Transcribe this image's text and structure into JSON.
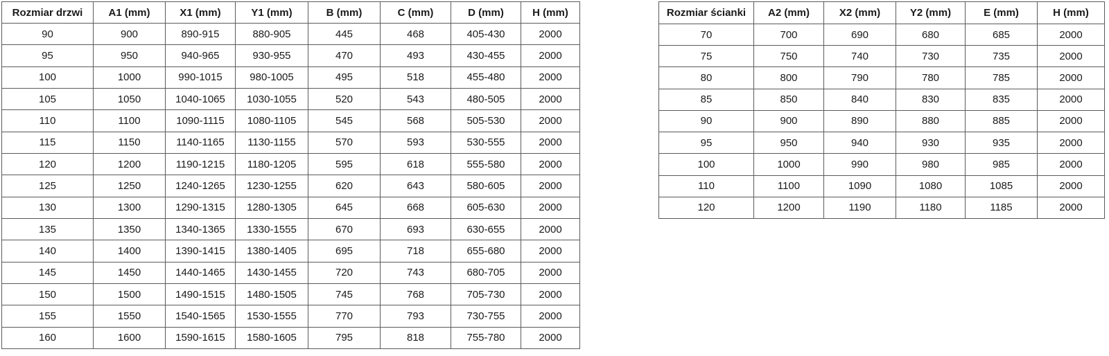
{
  "left_table": {
    "name": "door-size-table",
    "headers": [
      "Rozmiar drzwi",
      "A1 (mm)",
      "X1 (mm)",
      "Y1 (mm)",
      "B (mm)",
      "C (mm)",
      "D (mm)",
      "H (mm)"
    ],
    "rows": [
      [
        "90",
        "900",
        "890-915",
        "880-905",
        "445",
        "468",
        "405-430",
        "2000"
      ],
      [
        "95",
        "950",
        "940-965",
        "930-955",
        "470",
        "493",
        "430-455",
        "2000"
      ],
      [
        "100",
        "1000",
        "990-1015",
        "980-1005",
        "495",
        "518",
        "455-480",
        "2000"
      ],
      [
        "105",
        "1050",
        "1040-1065",
        "1030-1055",
        "520",
        "543",
        "480-505",
        "2000"
      ],
      [
        "110",
        "1100",
        "1090-1115",
        "1080-1105",
        "545",
        "568",
        "505-530",
        "2000"
      ],
      [
        "115",
        "1150",
        "1140-1165",
        "1130-1155",
        "570",
        "593",
        "530-555",
        "2000"
      ],
      [
        "120",
        "1200",
        "1190-1215",
        "1180-1205",
        "595",
        "618",
        "555-580",
        "2000"
      ],
      [
        "125",
        "1250",
        "1240-1265",
        "1230-1255",
        "620",
        "643",
        "580-605",
        "2000"
      ],
      [
        "130",
        "1300",
        "1290-1315",
        "1280-1305",
        "645",
        "668",
        "605-630",
        "2000"
      ],
      [
        "135",
        "1350",
        "1340-1365",
        "1330-1555",
        "670",
        "693",
        "630-655",
        "2000"
      ],
      [
        "140",
        "1400",
        "1390-1415",
        "1380-1405",
        "695",
        "718",
        "655-680",
        "2000"
      ],
      [
        "145",
        "1450",
        "1440-1465",
        "1430-1455",
        "720",
        "743",
        "680-705",
        "2000"
      ],
      [
        "150",
        "1500",
        "1490-1515",
        "1480-1505",
        "745",
        "768",
        "705-730",
        "2000"
      ],
      [
        "155",
        "1550",
        "1540-1565",
        "1530-1555",
        "770",
        "793",
        "730-755",
        "2000"
      ],
      [
        "160",
        "1600",
        "1590-1615",
        "1580-1605",
        "795",
        "818",
        "755-780",
        "2000"
      ]
    ]
  },
  "right_table": {
    "name": "wall-panel-size-table",
    "headers": [
      "Rozmiar ścianki",
      "A2 (mm)",
      "X2 (mm)",
      "Y2 (mm)",
      "E (mm)",
      "H (mm)"
    ],
    "rows": [
      [
        "70",
        "700",
        "690",
        "680",
        "685",
        "2000"
      ],
      [
        "75",
        "750",
        "740",
        "730",
        "735",
        "2000"
      ],
      [
        "80",
        "800",
        "790",
        "780",
        "785",
        "2000"
      ],
      [
        "85",
        "850",
        "840",
        "830",
        "835",
        "2000"
      ],
      [
        "90",
        "900",
        "890",
        "880",
        "885",
        "2000"
      ],
      [
        "95",
        "950",
        "940",
        "930",
        "935",
        "2000"
      ],
      [
        "100",
        "1000",
        "990",
        "980",
        "985",
        "2000"
      ],
      [
        "110",
        "1100",
        "1090",
        "1080",
        "1085",
        "2000"
      ],
      [
        "120",
        "1200",
        "1190",
        "1180",
        "1185",
        "2000"
      ]
    ]
  },
  "style": {
    "border_color": "#5a5a5a",
    "text_color": "#1a1a1a",
    "background_color": "#ffffff"
  }
}
